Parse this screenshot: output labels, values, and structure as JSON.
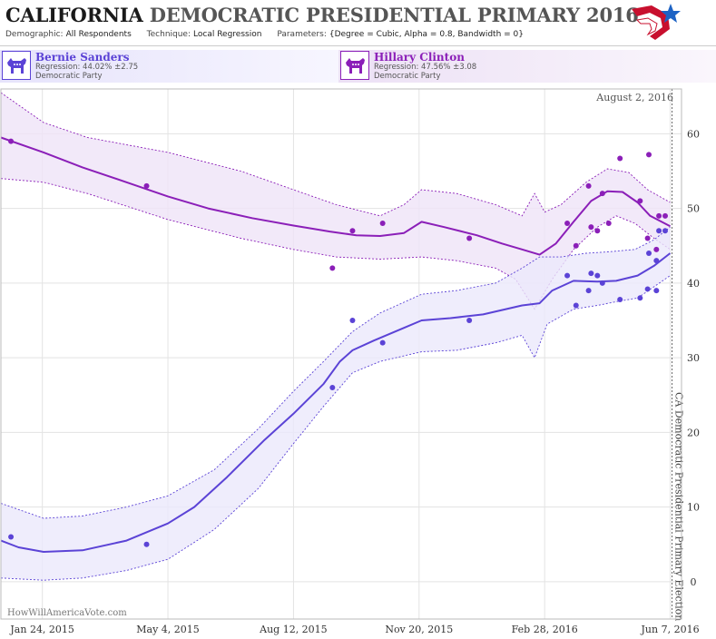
{
  "header": {
    "title_state": "CALIFORNIA",
    "title_rest": "DEMOCRATIC PRESIDENTIAL PRIMARY 2016",
    "demographic_label": "Demographic:",
    "demographic_value": "All Respondents",
    "technique_label": "Technique:",
    "technique_value": "Local Regression",
    "parameters_label": "Parameters:",
    "parameters_value": "{Degree = Cubic, Alpha = 0.8, Bandwidth = 0}",
    "logo_icon": "star-flag-logo"
  },
  "candidates": [
    {
      "name": "Bernie Sanders",
      "regression": "Regression: 44.02% ±2.75",
      "party": "Democratic Party",
      "icon": "democrat-donkey-icon",
      "color": "#5b43d6"
    },
    {
      "name": "Hillary Clinton",
      "regression": "Regression: 47.56% ±3.08",
      "party": "Democratic Party",
      "icon": "democrat-donkey-icon",
      "color": "#8b1fb8"
    }
  ],
  "watermark": "HowWillAmericaVote.com",
  "chart_data": {
    "type": "line",
    "x_start": "2014-12-22",
    "x_end": "2016-06-16",
    "ylim": [
      -5,
      66
    ],
    "yticks": [
      0,
      10,
      20,
      30,
      40,
      50,
      60
    ],
    "grid": true,
    "x_ticks": [
      {
        "date": "2015-01-24",
        "label": "Jan 24, 2015"
      },
      {
        "date": "2015-05-04",
        "label": "May 4, 2015"
      },
      {
        "date": "2015-08-12",
        "label": "Aug 12, 2015"
      },
      {
        "date": "2015-11-20",
        "label": "Nov 20, 2015"
      },
      {
        "date": "2016-02-28",
        "label": "Feb 28, 2016"
      },
      {
        "date": "2016-06-07",
        "label": "Jun 7, 2016"
      }
    ],
    "election": {
      "date": "2016-06-07",
      "label": "CA Democratic Presidential Primary Election"
    },
    "last_update_label": "August 2, 2016",
    "series": [
      {
        "name": "Hillary Clinton",
        "color": "#8b1fb8",
        "band_fill": "#efe4f8",
        "trend": [
          [
            "2014-12-22",
            59.5
          ],
          [
            "2015-01-25",
            57.5
          ],
          [
            "2015-02-25",
            55.5
          ],
          [
            "2015-04-01",
            53.5
          ],
          [
            "2015-05-04",
            51.6
          ],
          [
            "2015-06-05",
            50.0
          ],
          [
            "2015-07-10",
            48.7
          ],
          [
            "2015-08-12",
            47.7
          ],
          [
            "2015-09-10",
            46.9
          ],
          [
            "2015-10-01",
            46.4
          ],
          [
            "2015-10-20",
            46.3
          ],
          [
            "2015-11-08",
            46.7
          ],
          [
            "2015-11-22",
            48.2
          ],
          [
            "2015-12-10",
            47.5
          ],
          [
            "2016-01-05",
            46.4
          ],
          [
            "2016-01-25",
            45.3
          ],
          [
            "2016-02-10",
            44.5
          ],
          [
            "2016-02-24",
            43.8
          ],
          [
            "2016-03-08",
            45.3
          ],
          [
            "2016-03-22",
            48.2
          ],
          [
            "2016-04-05",
            51.0
          ],
          [
            "2016-04-18",
            52.3
          ],
          [
            "2016-04-30",
            52.2
          ],
          [
            "2016-05-12",
            50.8
          ],
          [
            "2016-05-22",
            49.0
          ],
          [
            "2016-06-07",
            47.6
          ]
        ],
        "upper": [
          [
            "2014-12-22",
            65.5
          ],
          [
            "2015-01-25",
            61.5
          ],
          [
            "2015-03-01",
            59.5
          ],
          [
            "2015-05-04",
            57.5
          ],
          [
            "2015-07-01",
            55.0
          ],
          [
            "2015-08-12",
            52.5
          ],
          [
            "2015-09-15",
            50.5
          ],
          [
            "2015-10-20",
            49.0
          ],
          [
            "2015-11-08",
            50.5
          ],
          [
            "2015-11-22",
            52.5
          ],
          [
            "2015-12-20",
            52.0
          ],
          [
            "2016-01-20",
            50.5
          ],
          [
            "2016-02-10",
            49.0
          ],
          [
            "2016-02-20",
            52.0
          ],
          [
            "2016-02-28",
            49.5
          ],
          [
            "2016-03-12",
            50.5
          ],
          [
            "2016-04-01",
            53.5
          ],
          [
            "2016-04-18",
            55.3
          ],
          [
            "2016-05-05",
            54.8
          ],
          [
            "2016-05-20",
            52.5
          ],
          [
            "2016-06-07",
            50.8
          ]
        ],
        "lower": [
          [
            "2014-12-22",
            54.0
          ],
          [
            "2015-01-25",
            53.5
          ],
          [
            "2015-03-01",
            52.0
          ],
          [
            "2015-05-04",
            48.5
          ],
          [
            "2015-07-01",
            46.0
          ],
          [
            "2015-08-12",
            44.5
          ],
          [
            "2015-09-15",
            43.5
          ],
          [
            "2015-10-20",
            43.2
          ],
          [
            "2015-11-22",
            43.5
          ],
          [
            "2015-12-20",
            43.0
          ],
          [
            "2016-01-20",
            42.0
          ],
          [
            "2016-02-05",
            40.5
          ],
          [
            "2016-02-20",
            36.5
          ],
          [
            "2016-03-05",
            40.5
          ],
          [
            "2016-03-22",
            44.5
          ],
          [
            "2016-04-10",
            47.5
          ],
          [
            "2016-04-25",
            49.0
          ],
          [
            "2016-05-10",
            48.0
          ],
          [
            "2016-05-25",
            46.0
          ],
          [
            "2016-06-07",
            44.5
          ]
        ],
        "points": [
          [
            "2014-12-30",
            59.0
          ],
          [
            "2015-04-17",
            53.0
          ],
          [
            "2015-09-12",
            42.0
          ],
          [
            "2015-09-28",
            47.0
          ],
          [
            "2015-10-22",
            48.0
          ],
          [
            "2015-12-30",
            46.0
          ],
          [
            "2016-03-17",
            48.0
          ],
          [
            "2016-03-24",
            45.0
          ],
          [
            "2016-04-03",
            53.0
          ],
          [
            "2016-04-05",
            47.5
          ],
          [
            "2016-04-10",
            47.0
          ],
          [
            "2016-04-14",
            52.0
          ],
          [
            "2016-04-19",
            48.0
          ],
          [
            "2016-04-28",
            56.7
          ],
          [
            "2016-05-14",
            51.0
          ],
          [
            "2016-05-20",
            46.0
          ],
          [
            "2016-05-21",
            57.2
          ],
          [
            "2016-05-27",
            44.5
          ],
          [
            "2016-05-29",
            49.0
          ],
          [
            "2016-06-03",
            49.0
          ]
        ]
      },
      {
        "name": "Bernie Sanders",
        "color": "#5b43d6",
        "band_fill": "#ebe8fb",
        "trend": [
          [
            "2014-12-22",
            5.5
          ],
          [
            "2015-01-05",
            4.6
          ],
          [
            "2015-01-25",
            4.0
          ],
          [
            "2015-02-25",
            4.2
          ],
          [
            "2015-04-01",
            5.5
          ],
          [
            "2015-05-04",
            7.8
          ],
          [
            "2015-05-25",
            10.0
          ],
          [
            "2015-06-20",
            14.0
          ],
          [
            "2015-07-20",
            19.0
          ],
          [
            "2015-08-12",
            22.5
          ],
          [
            "2015-09-05",
            26.5
          ],
          [
            "2015-09-18",
            29.5
          ],
          [
            "2015-09-28",
            31.0
          ],
          [
            "2015-10-15",
            32.3
          ],
          [
            "2015-11-08",
            34.0
          ],
          [
            "2015-11-22",
            35.0
          ],
          [
            "2015-12-15",
            35.3
          ],
          [
            "2016-01-10",
            35.8
          ],
          [
            "2016-02-10",
            37.0
          ],
          [
            "2016-02-24",
            37.3
          ],
          [
            "2016-03-05",
            39.0
          ],
          [
            "2016-03-22",
            40.3
          ],
          [
            "2016-04-10",
            40.2
          ],
          [
            "2016-04-25",
            40.3
          ],
          [
            "2016-05-12",
            41.0
          ],
          [
            "2016-05-25",
            42.3
          ],
          [
            "2016-06-07",
            44.0
          ]
        ],
        "upper": [
          [
            "2014-12-22",
            10.5
          ],
          [
            "2015-01-25",
            8.5
          ],
          [
            "2015-02-25",
            8.8
          ],
          [
            "2015-04-01",
            10.0
          ],
          [
            "2015-05-04",
            11.5
          ],
          [
            "2015-06-10",
            15.0
          ],
          [
            "2015-07-15",
            20.5
          ],
          [
            "2015-08-12",
            25.5
          ],
          [
            "2015-09-05",
            29.5
          ],
          [
            "2015-09-28",
            33.5
          ],
          [
            "2015-10-20",
            36.0
          ],
          [
            "2015-11-22",
            38.5
          ],
          [
            "2015-12-20",
            39.0
          ],
          [
            "2016-01-20",
            40.0
          ],
          [
            "2016-02-10",
            42.0
          ],
          [
            "2016-02-24",
            43.5
          ],
          [
            "2016-03-12",
            43.5
          ],
          [
            "2016-04-01",
            44.0
          ],
          [
            "2016-04-20",
            44.2
          ],
          [
            "2016-05-10",
            44.5
          ],
          [
            "2016-05-25",
            45.8
          ],
          [
            "2016-06-07",
            47.5
          ]
        ],
        "lower": [
          [
            "2014-12-22",
            0.5
          ],
          [
            "2015-01-25",
            0.2
          ],
          [
            "2015-02-25",
            0.5
          ],
          [
            "2015-04-01",
            1.5
          ],
          [
            "2015-05-04",
            3.0
          ],
          [
            "2015-06-10",
            7.0
          ],
          [
            "2015-07-15",
            12.5
          ],
          [
            "2015-08-12",
            18.5
          ],
          [
            "2015-09-05",
            23.5
          ],
          [
            "2015-09-28",
            28.0
          ],
          [
            "2015-10-20",
            29.5
          ],
          [
            "2015-11-22",
            30.8
          ],
          [
            "2015-12-20",
            31.0
          ],
          [
            "2016-01-20",
            32.0
          ],
          [
            "2016-02-10",
            33.0
          ],
          [
            "2016-02-20",
            30.0
          ],
          [
            "2016-03-01",
            34.5
          ],
          [
            "2016-03-22",
            36.5
          ],
          [
            "2016-04-10",
            37.0
          ],
          [
            "2016-04-25",
            37.5
          ],
          [
            "2016-05-12",
            38.0
          ],
          [
            "2016-05-25",
            39.5
          ],
          [
            "2016-06-07",
            41.0
          ]
        ],
        "points": [
          [
            "2014-12-30",
            6.0
          ],
          [
            "2015-04-17",
            5.0
          ],
          [
            "2015-09-12",
            26.0
          ],
          [
            "2015-09-28",
            35.0
          ],
          [
            "2015-10-22",
            32.0
          ],
          [
            "2015-12-30",
            35.0
          ],
          [
            "2016-03-17",
            41.0
          ],
          [
            "2016-03-24",
            37.0
          ],
          [
            "2016-04-03",
            39.0
          ],
          [
            "2016-04-05",
            41.3
          ],
          [
            "2016-04-10",
            41.0
          ],
          [
            "2016-04-14",
            40.0
          ],
          [
            "2016-04-28",
            37.8
          ],
          [
            "2016-05-14",
            38.0
          ],
          [
            "2016-05-20",
            39.2
          ],
          [
            "2016-05-21",
            44.0
          ],
          [
            "2016-05-27",
            39.0
          ],
          [
            "2016-05-27",
            43.0
          ],
          [
            "2016-05-29",
            47.0
          ],
          [
            "2016-06-03",
            47.0
          ]
        ]
      }
    ]
  }
}
